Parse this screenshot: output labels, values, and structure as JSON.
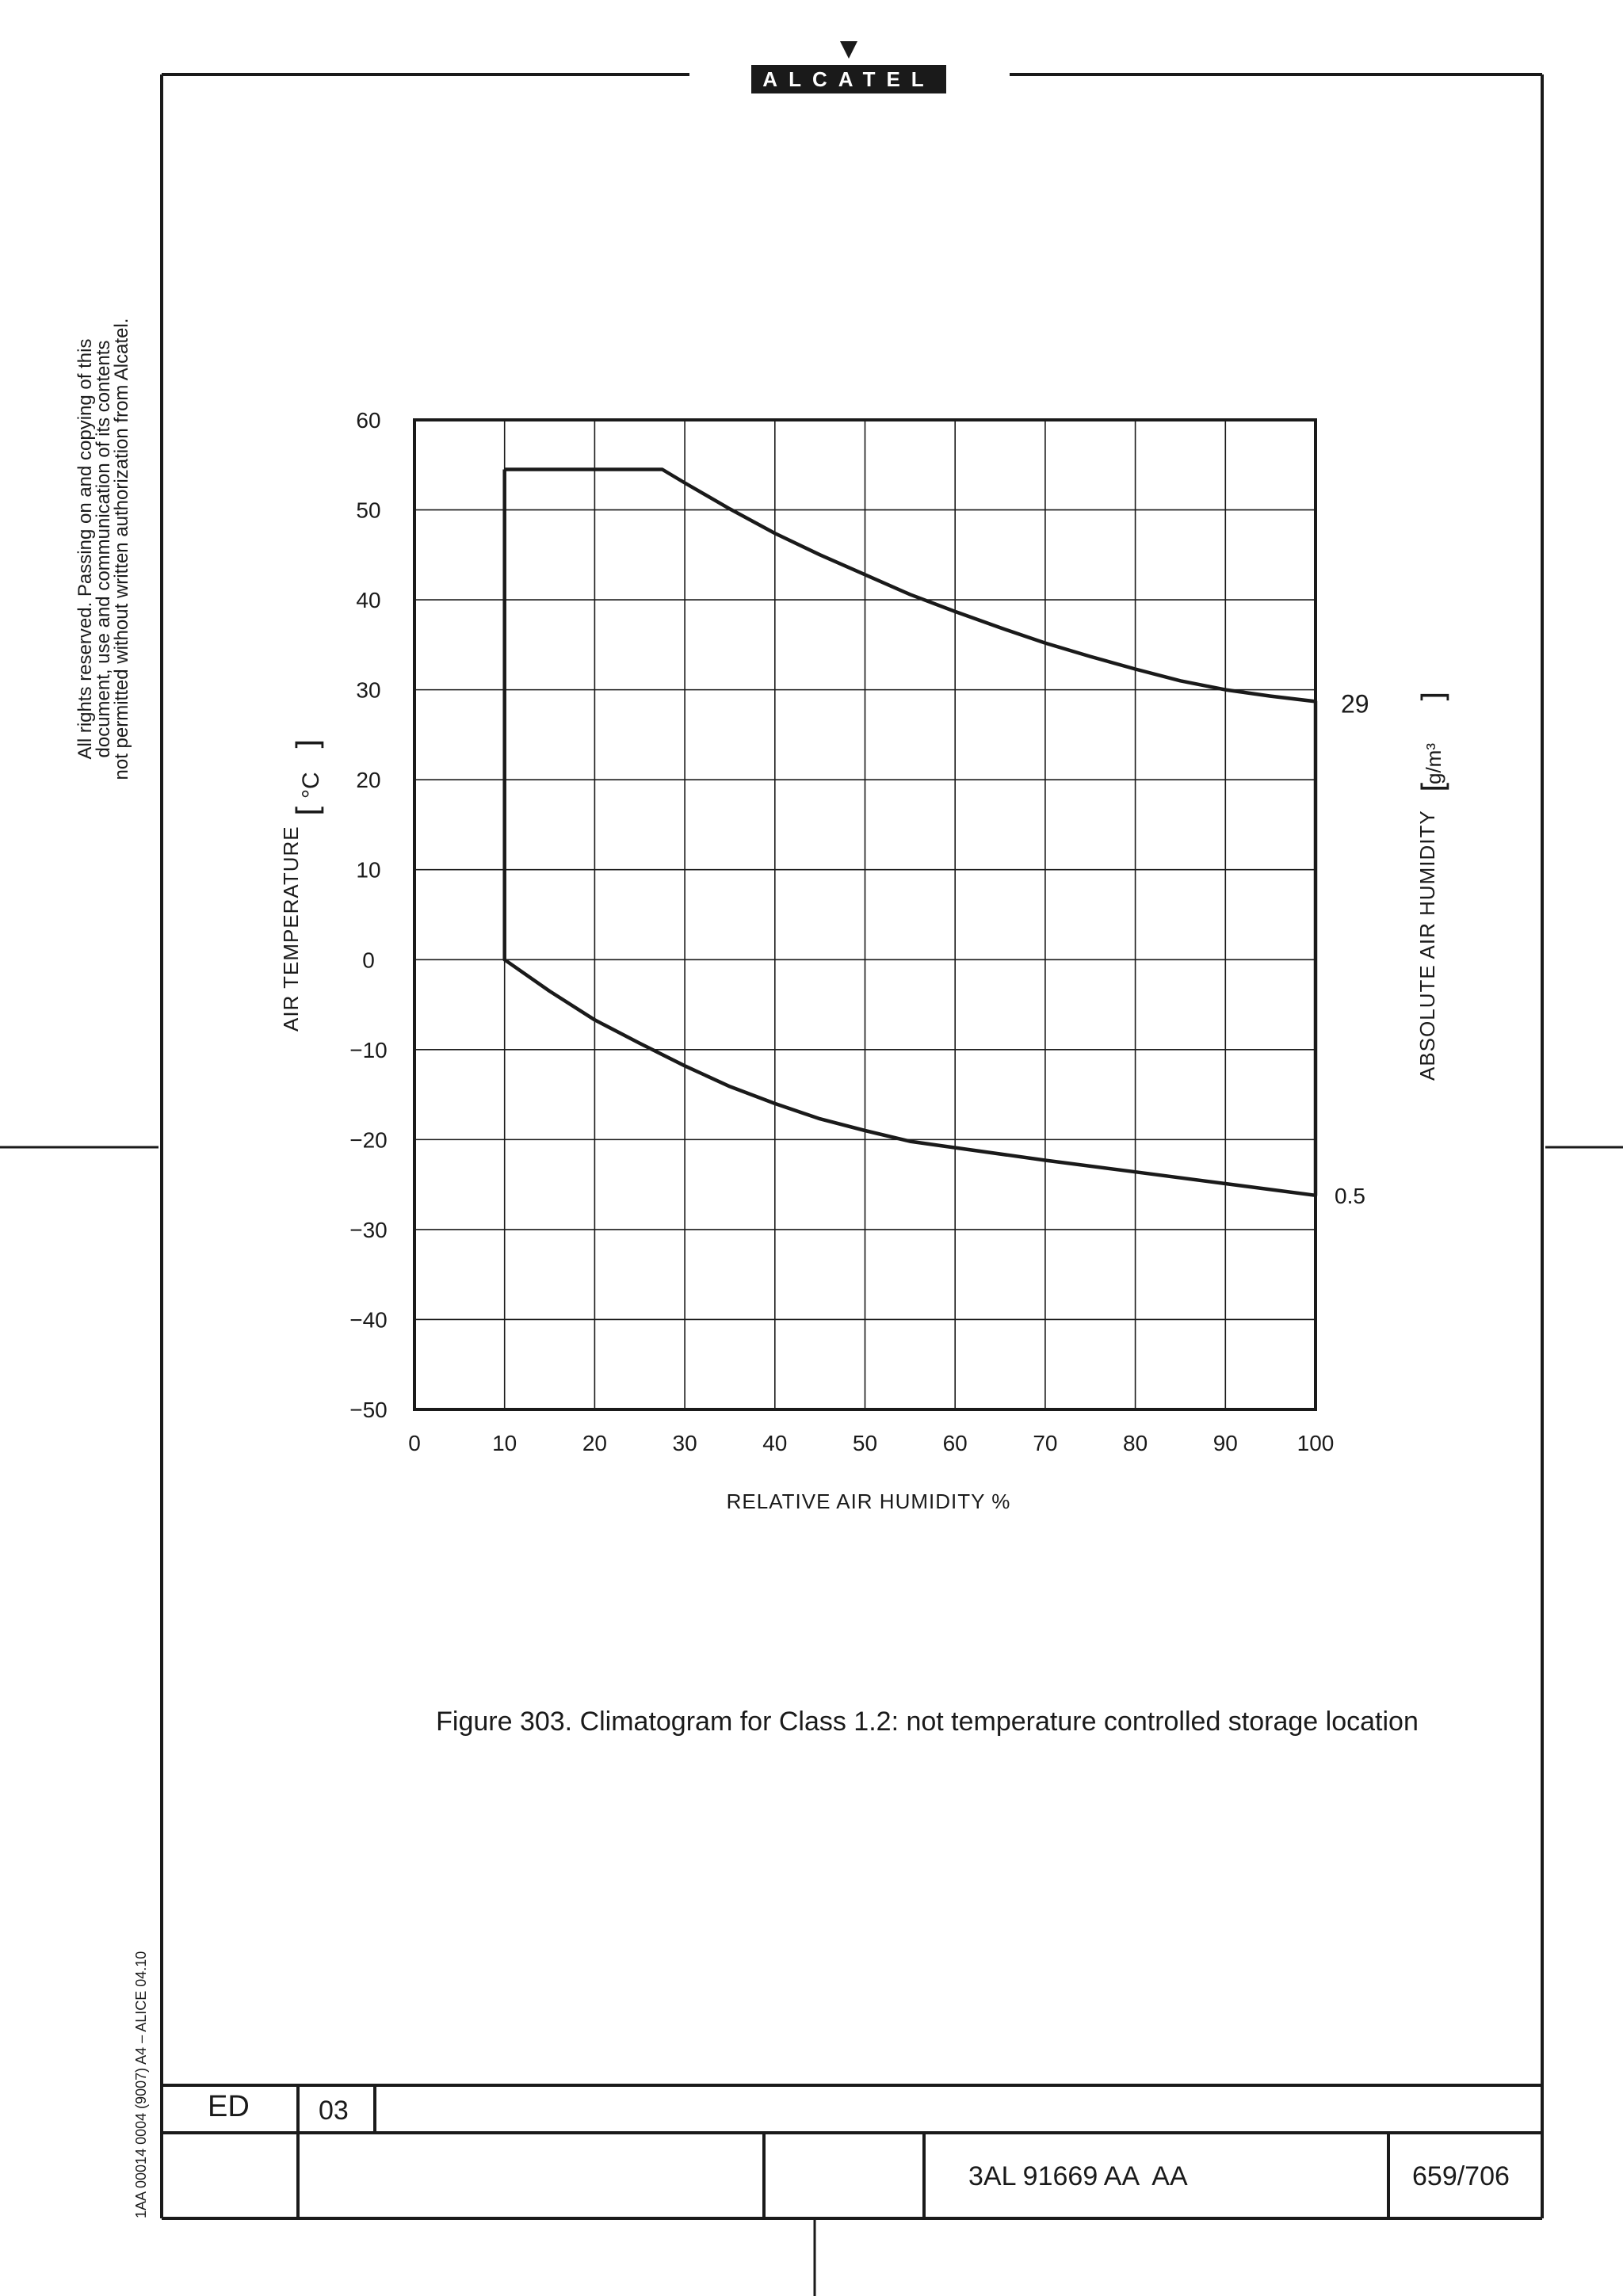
{
  "header": {
    "brand_text": "ALCATEL"
  },
  "margin_notice": {
    "line1": "All rights reserved. Passing on and copying of this",
    "line2": "document, use and communication of its contents",
    "line3": "not permitted without written authorization from Alcatel."
  },
  "form_code": "1AA 00014 0004 (9007) A4 – ALICE 04.10",
  "figure": {
    "caption": "Figure 303. Climatogram for Class 1.2: not temperature controlled storage location"
  },
  "chart_data": {
    "type": "line",
    "xlabel": "RELATIVE AIR HUMIDITY %",
    "ylabel": "AIR TEMPERATURE",
    "ylabel_unit": "°C",
    "y2label": "ABSOLUTE AIR HUMIDITY",
    "y2label_unit": "g/m³",
    "xlim": [
      0,
      100
    ],
    "ylim": [
      -50,
      60
    ],
    "x_ticks": [
      0,
      10,
      20,
      30,
      40,
      50,
      60,
      70,
      80,
      90,
      100
    ],
    "y_ticks": [
      60,
      50,
      40,
      30,
      20,
      10,
      0,
      -10,
      -20,
      -30,
      -40,
      -50
    ],
    "x_tick_labels": [
      "0",
      "10",
      "20",
      "30",
      "40",
      "50",
      "60",
      "70",
      "80",
      "90",
      "100"
    ],
    "y_tick_labels": [
      "60",
      "50",
      "40",
      "30",
      "20",
      "10",
      "0",
      "−10",
      "−20",
      "−30",
      "−40",
      "−50"
    ],
    "grid": true,
    "series": [
      {
        "points": [
          [
            10,
            54.5
          ],
          [
            27.5,
            54.5
          ],
          [
            30,
            53
          ],
          [
            35,
            50.1
          ],
          [
            40,
            47.4
          ],
          [
            45,
            45
          ],
          [
            50,
            42.8
          ],
          [
            55,
            40.6
          ],
          [
            60,
            38.7
          ],
          [
            65,
            36.9
          ],
          [
            70,
            35.2
          ],
          [
            75,
            33.7
          ],
          [
            80,
            32.3
          ],
          [
            85,
            31
          ],
          [
            90,
            30
          ],
          [
            95,
            29.3
          ],
          [
            100,
            28.7
          ],
          [
            100,
            -26.2
          ],
          [
            90,
            -24.9
          ],
          [
            80,
            -23.6
          ],
          [
            70,
            -22.3
          ],
          [
            60,
            -20.9
          ],
          [
            55,
            -20.2
          ],
          [
            50,
            -19
          ],
          [
            45,
            -17.7
          ],
          [
            40,
            -16
          ],
          [
            35,
            -14.1
          ],
          [
            30,
            -11.8
          ],
          [
            25,
            -9.3
          ],
          [
            20,
            -6.7
          ],
          [
            15,
            -3.5
          ],
          [
            10,
            0
          ],
          [
            10,
            54.5
          ]
        ]
      }
    ],
    "annotations": [
      {
        "text": "29",
        "x": 100,
        "y": 28.7
      },
      {
        "text": "0.5",
        "x": 100,
        "y": -26.2
      }
    ]
  },
  "title_block": {
    "ed_label": "ED",
    "ed_value": "03",
    "doc_number": "3AL 91669 AA  AA",
    "page": "659/706"
  }
}
